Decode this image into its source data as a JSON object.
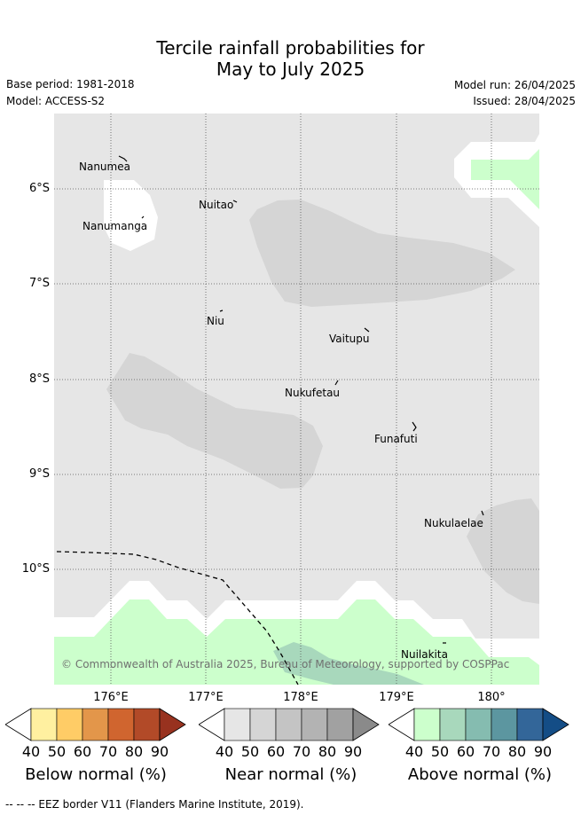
{
  "title_line1": "Tercile rainfall probabilities for",
  "title_line2": "May to July 2025",
  "base_period": "Base period: 1981-2018",
  "model": "Model: ACCESS-S2",
  "model_run": "Model run: 26/04/2025",
  "issued": "Issued: 28/04/2025",
  "lat_labels": [
    "6°S",
    "7°S",
    "8°S",
    "9°S",
    "10°S"
  ],
  "lon_labels": [
    "176°E",
    "177°E",
    "178°E",
    "179°E",
    "180°"
  ],
  "places": [
    {
      "name": "Nanumea"
    },
    {
      "name": "Nuitao"
    },
    {
      "name": "Nanumanga"
    },
    {
      "name": "Niu"
    },
    {
      "name": "Vaitupu"
    },
    {
      "name": "Nukufetau"
    },
    {
      "name": "Funafuti"
    },
    {
      "name": "Nukulaelae"
    },
    {
      "name": "Nuilakita"
    }
  ],
  "copyright": "© Commonwealth of Australia 2025, Bureau of Meteorology, supported by COSPPac",
  "colorbars": [
    {
      "label": "Below normal (%)",
      "ticks": [
        "40",
        "50",
        "60",
        "70",
        "80",
        "90"
      ],
      "colors": [
        "#ffffff",
        "#fff0a0",
        "#ffcc66",
        "#e3964a",
        "#d0652f",
        "#b24a28",
        "#98321f"
      ]
    },
    {
      "label": "Near normal (%)",
      "ticks": [
        "40",
        "50",
        "60",
        "70",
        "80",
        "90"
      ],
      "colors": [
        "#ffffff",
        "#e6e6e6",
        "#d5d5d5",
        "#c4c4c4",
        "#b3b3b3",
        "#a1a1a1",
        "#8a8a8a"
      ]
    },
    {
      "label": "Above normal (%)",
      "ticks": [
        "40",
        "50",
        "60",
        "70",
        "80",
        "90"
      ],
      "colors": [
        "#ffffff",
        "#ccffcc",
        "#a8d8bc",
        "#85bcb0",
        "#5c96a0",
        "#336699",
        "#144d86"
      ]
    }
  ],
  "map_colors": {
    "background": "#e6e6e6",
    "near_normal_50": "#d5d5d5",
    "above_normal_40": "#ccffcc",
    "above_normal_50": "#a8d8bc",
    "no_signal": "#ffffff"
  },
  "footer": "-- -- -- EEZ border V11 (Flanders Marine Institute, 2019)."
}
